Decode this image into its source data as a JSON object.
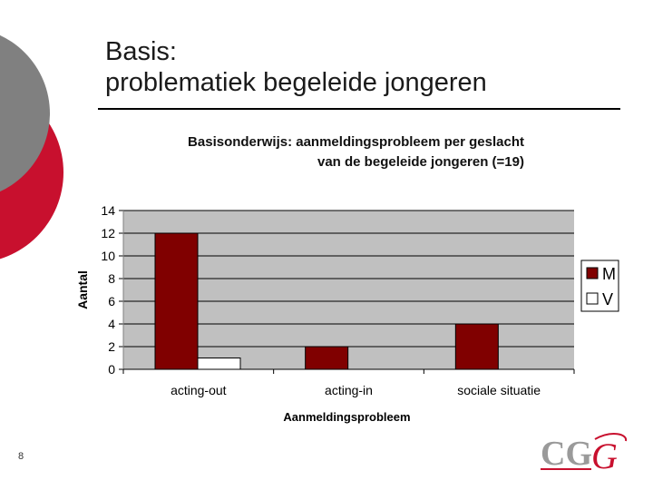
{
  "slide": {
    "title_line1": "Basis:",
    "title_line2": "problematiek begeleide jongeren",
    "page_number": "8"
  },
  "colors": {
    "series_m": "#800000",
    "series_v": "#ffffff",
    "plot_bg": "#c0c0c0",
    "deco_gray": "#7f7f7f",
    "deco_red": "#c8102e"
  },
  "logo": {
    "icon": "cgg-logo-icon"
  },
  "chart_data": {
    "type": "bar",
    "title_line1": "Basisonderwijs: aanmeldingsprobleem per geslacht",
    "title_line2": "van de begeleide jongeren (=19)",
    "xlabel": "Aanmeldingsprobleem",
    "ylabel": "Aantal",
    "categories": [
      "acting-out",
      "acting-in",
      "sociale situatie"
    ],
    "series": [
      {
        "name": "M",
        "values": [
          12,
          2,
          4
        ]
      },
      {
        "name": "V",
        "values": [
          1,
          0,
          0
        ]
      }
    ],
    "ylim": [
      0,
      14
    ],
    "yticks": [
      0,
      2,
      4,
      6,
      8,
      10,
      12,
      14
    ],
    "grid": true,
    "legend": "right"
  }
}
